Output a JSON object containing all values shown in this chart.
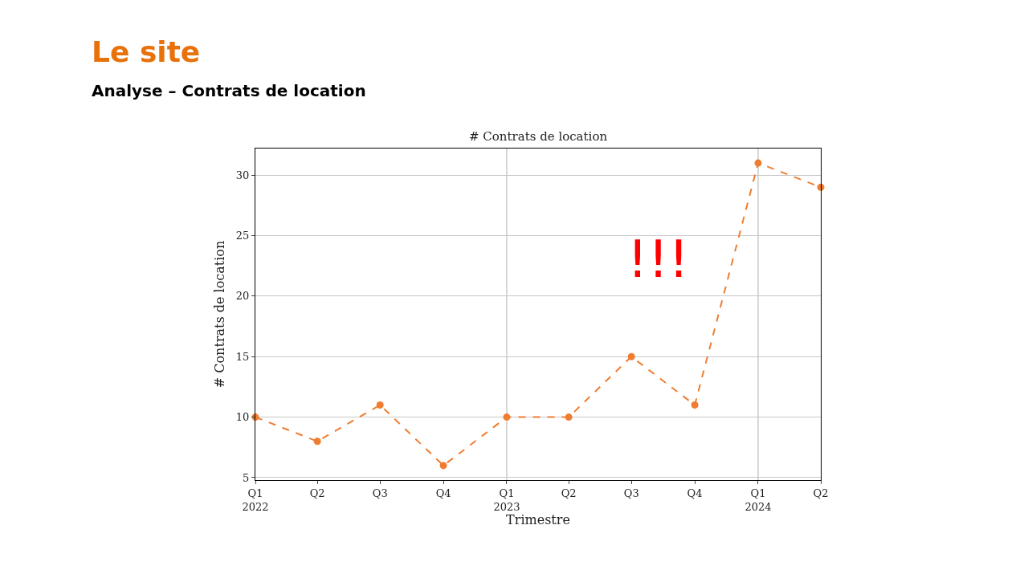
{
  "chart_data": {
    "type": "line",
    "title": "Le site",
    "subtitle": "Analyse – Contrats de location",
    "xlabel": "Trimestre",
    "ylabel": "# Contrats de location",
    "x": [
      "2022-01",
      "2022-04",
      "2022-07",
      "2022-10",
      "2023-01",
      "2023-04",
      "2023-07",
      "2023-10",
      "2024-01",
      "2024-04"
    ],
    "series": [
      {
        "color": "#ef7d31",
        "values": [
          10,
          8,
          11,
          6,
          10,
          10,
          15,
          11,
          31,
          29
        ]
      }
    ],
    "xlim": [
      "2022-01",
      "2024-04"
    ],
    "xticks": [
      {
        "value": "2022-01",
        "label": "Q1\n2022"
      },
      {
        "value": "2022-04",
        "label": "Q2"
      },
      {
        "value": "2022-07",
        "label": "Q3"
      },
      {
        "value": "2022-10",
        "label": "Q4"
      },
      {
        "value": "2023-01",
        "label": "Q1\n2023"
      },
      {
        "value": "2023-04",
        "label": "Q2"
      },
      {
        "value": "2023-07",
        "label": "Q3"
      },
      {
        "value": "2023-10",
        "label": "Q4"
      },
      {
        "value": "2024-01",
        "label": "Q1\n2024"
      },
      {
        "value": "2024-04",
        "label": "Q2"
      }
    ],
    "ylim": [
      4.8,
      32.2
    ],
    "yticks": [
      5,
      10,
      15,
      20,
      25,
      30
    ],
    "grid": "y",
    "ref_lines": [
      {
        "axis": "x",
        "value": "2023-01",
        "color": "#b0b0b0"
      },
      {
        "axis": "x",
        "value": "2024-01",
        "color": "#b0b0b0"
      }
    ],
    "marker": "circle",
    "line_style": "dashed",
    "annotations": [
      "# Contrats de location",
      "!!!"
    ]
  }
}
